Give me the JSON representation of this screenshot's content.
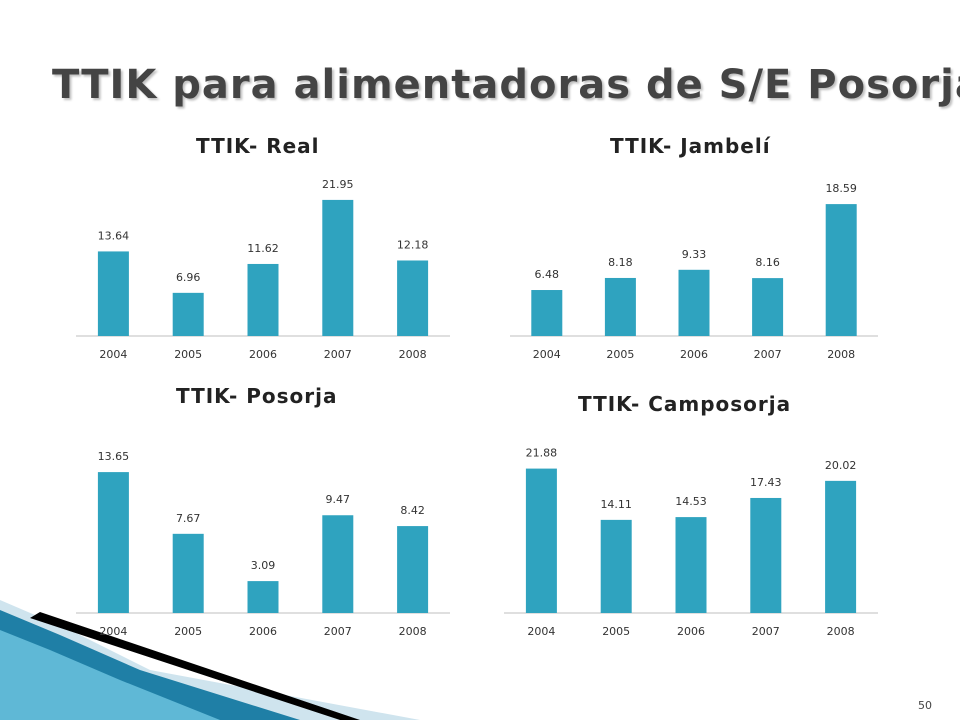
{
  "page": {
    "title": "TTIK para alimentadoras de S/E Posorja.",
    "page_number": "50"
  },
  "colors": {
    "bar": "#2fa3bf",
    "title": "#444444",
    "decor_blue": "#1f7fa6",
    "decor_light": "#cfe4ee"
  },
  "chart_data": [
    {
      "type": "bar",
      "title": "TTIK- Real",
      "categories": [
        "2004",
        "2005",
        "2006",
        "2007",
        "2008"
      ],
      "values": [
        13.64,
        6.96,
        11.62,
        21.95,
        12.18
      ],
      "labels": [
        "13.64",
        "6.96",
        "11.62",
        "21.95",
        "12.18"
      ],
      "ylim": [
        0,
        25
      ],
      "grid": false,
      "legend": "none"
    },
    {
      "type": "bar",
      "title": "TTIK- Jambelí",
      "categories": [
        "2004",
        "2005",
        "2006",
        "2007",
        "2008"
      ],
      "values": [
        6.48,
        8.18,
        9.33,
        8.16,
        18.59
      ],
      "labels": [
        "6.48",
        "8.18",
        "9.33",
        "8.16",
        "18.59"
      ],
      "ylim": [
        0,
        21
      ],
      "grid": false,
      "legend": "none"
    },
    {
      "type": "bar",
      "title": "TTIK- Posorja",
      "categories": [
        "2004",
        "2005",
        "2006",
        "2007",
        "2008"
      ],
      "values": [
        13.65,
        7.67,
        3.09,
        9.47,
        8.42
      ],
      "labels": [
        "13.65",
        "7.67",
        "3.09",
        "9.47",
        "8.42"
      ],
      "ylim": [
        0,
        15.5
      ],
      "grid": false,
      "legend": "none"
    },
    {
      "type": "bar",
      "title": "TTIK- Camposorja",
      "categories": [
        "2004",
        "2005",
        "2006",
        "2007",
        "2008"
      ],
      "values": [
        21.88,
        14.11,
        14.53,
        17.43,
        20.02
      ],
      "labels": [
        "21.88",
        "14.11",
        "14.53",
        "17.43",
        "20.02"
      ],
      "ylim": [
        0,
        25
      ],
      "grid": false,
      "legend": "none"
    }
  ]
}
